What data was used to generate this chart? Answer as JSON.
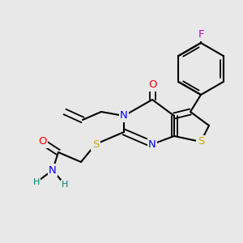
{
  "bg_color": "#e8e8e8",
  "atom_colors": {
    "C": "#000000",
    "N": "#0000ff",
    "O": "#ff0000",
    "S": "#ccaa00",
    "F": "#cc00cc",
    "H": "#008080"
  },
  "figsize": [
    3.0,
    3.0
  ],
  "dpi": 100
}
